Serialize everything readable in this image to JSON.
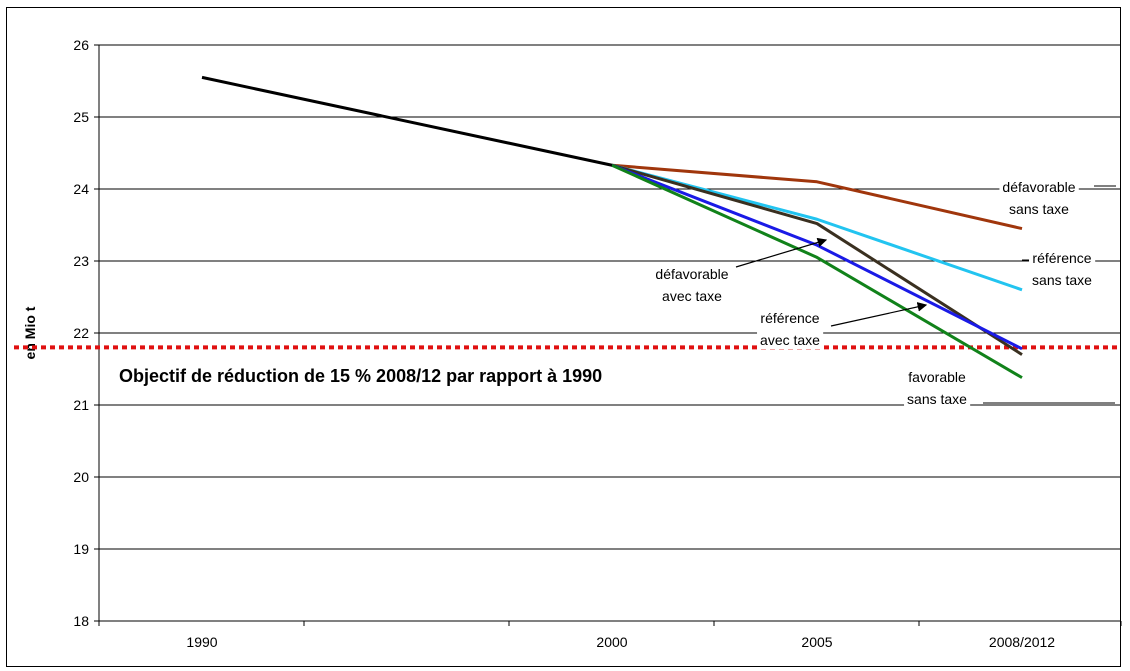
{
  "chart_data": {
    "type": "line",
    "ylabel": "en Mio t",
    "ylim": [
      18,
      26
    ],
    "yticks": [
      18,
      19,
      20,
      21,
      22,
      23,
      24,
      25,
      26
    ],
    "categories": [
      "1990",
      "2000",
      "2005",
      "2008/2012"
    ],
    "grid": true,
    "series": [
      {
        "name": "défavorable sans taxe",
        "color": "#a0360c",
        "values": [
          25.55,
          24.33,
          24.1,
          23.45
        ]
      },
      {
        "name": "référence sans taxe",
        "color": "#22c4f0",
        "values": [
          25.55,
          24.33,
          23.58,
          22.6
        ]
      },
      {
        "name": "défavorable avec taxe",
        "color": "#3a3020",
        "values": [
          25.55,
          24.33,
          23.52,
          21.7
        ]
      },
      {
        "name": "référence avec taxe",
        "color": "#1a1ae6",
        "values": [
          25.55,
          24.33,
          23.22,
          21.78
        ]
      },
      {
        "name": "favorable sans taxe",
        "color": "#11821a",
        "values": [
          25.55,
          24.33,
          23.05,
          21.38
        ]
      }
    ],
    "history": {
      "color": "#000000",
      "values": [
        25.55,
        24.33
      ]
    },
    "target": {
      "value": 21.8,
      "color": "#e01010",
      "label": "Objectif de réduction de 15 % 2008/12 par rapport à 1990"
    },
    "annotations": [
      {
        "line1": "défavorable",
        "line2": "sans taxe",
        "series": "défavorable sans taxe"
      },
      {
        "line1": "référence",
        "line2": "sans taxe",
        "series": "référence sans taxe"
      },
      {
        "line1": "défavorable",
        "line2": "avec taxe",
        "series": "défavorable avec taxe"
      },
      {
        "line1": "référence",
        "line2": "avec taxe",
        "series": "référence avec taxe"
      },
      {
        "line1": "favorable",
        "line2": "sans taxe",
        "series": "favorable sans taxe"
      }
    ]
  }
}
